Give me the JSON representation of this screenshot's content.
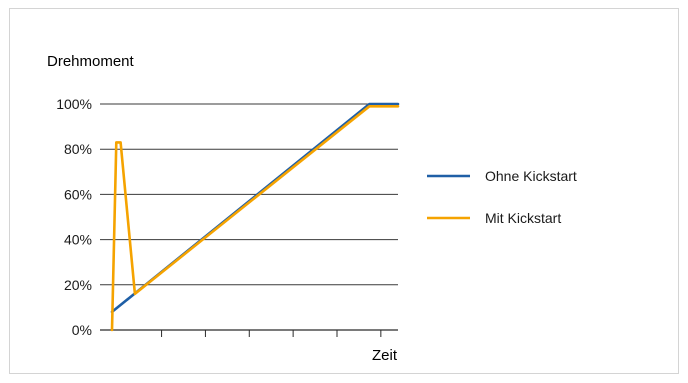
{
  "chart_data": {
    "type": "line",
    "ylabel": "Drehmoment",
    "xlabel": "Zeit",
    "ylim": [
      0,
      100
    ],
    "y_ticks": [
      "0%",
      "20%",
      "40%",
      "60%",
      "80%",
      "100%"
    ],
    "grid": true,
    "legend_position": "right",
    "series": [
      {
        "name": "Ohne Kickstart",
        "color": "#1f5fa6",
        "points": [
          [
            0,
            8
          ],
          [
            9,
            100
          ],
          [
            10,
            100
          ]
        ]
      },
      {
        "name": "Mit Kickstart",
        "color": "#f5a300",
        "points": [
          [
            0,
            0
          ],
          [
            0.15,
            83
          ],
          [
            0.3,
            83
          ],
          [
            0.8,
            16
          ],
          [
            9,
            99
          ],
          [
            10,
            99
          ]
        ]
      }
    ]
  }
}
